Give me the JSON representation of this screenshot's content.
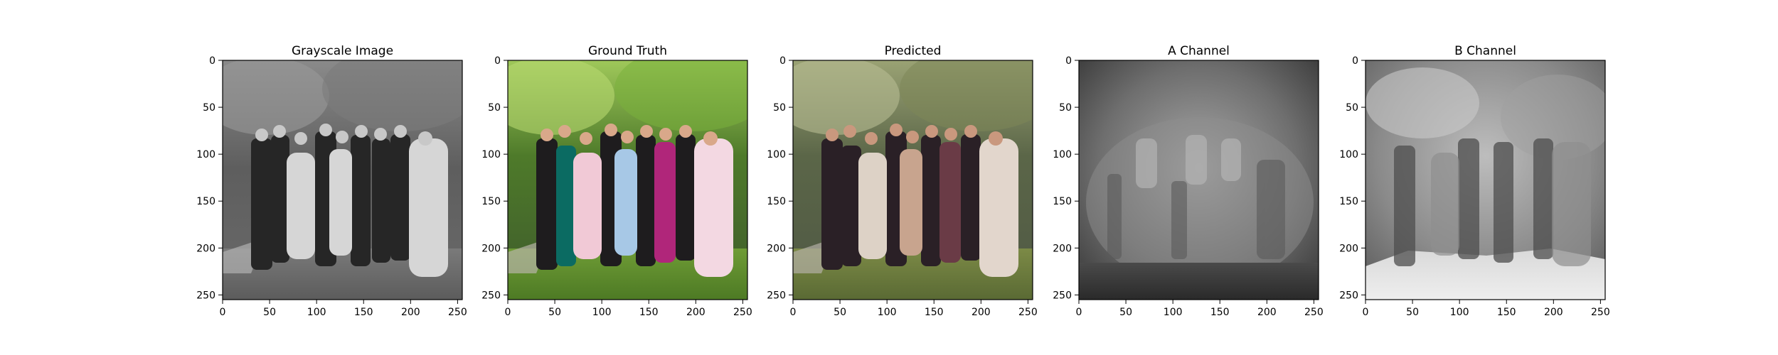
{
  "figure": {
    "background": "#ffffff",
    "axis_color": "#000000"
  },
  "chart_data": [
    {
      "type": "image",
      "title": "Grayscale Image",
      "colormap": "grayscale",
      "xlim": [
        0,
        255
      ],
      "ylim": [
        255,
        0
      ],
      "xticks": [
        0,
        50,
        100,
        150,
        200,
        250
      ],
      "yticks": [
        0,
        50,
        100,
        150,
        200,
        250
      ],
      "grid": false
    },
    {
      "type": "image",
      "title": "Ground Truth",
      "colormap": "rgb",
      "xlim": [
        0,
        255
      ],
      "ylim": [
        255,
        0
      ],
      "xticks": [
        0,
        50,
        100,
        150,
        200,
        250
      ],
      "yticks": [
        0,
        50,
        100,
        150,
        200,
        250
      ],
      "grid": false
    },
    {
      "type": "image",
      "title": "Predicted",
      "colormap": "rgb",
      "xlim": [
        0,
        255
      ],
      "ylim": [
        255,
        0
      ],
      "xticks": [
        0,
        50,
        100,
        150,
        200,
        250
      ],
      "yticks": [
        0,
        50,
        100,
        150,
        200,
        250
      ],
      "grid": false
    },
    {
      "type": "image",
      "title": "A Channel",
      "colormap": "gray",
      "xlim": [
        0,
        255
      ],
      "ylim": [
        255,
        0
      ],
      "xticks": [
        0,
        50,
        100,
        150,
        200,
        250
      ],
      "yticks": [
        0,
        50,
        100,
        150,
        200,
        250
      ],
      "grid": false
    },
    {
      "type": "image",
      "title": "B Channel",
      "colormap": "gray",
      "xlim": [
        0,
        255
      ],
      "ylim": [
        255,
        0
      ],
      "xticks": [
        0,
        50,
        100,
        150,
        200,
        250
      ],
      "yticks": [
        0,
        50,
        100,
        150,
        200,
        250
      ],
      "grid": false
    }
  ]
}
